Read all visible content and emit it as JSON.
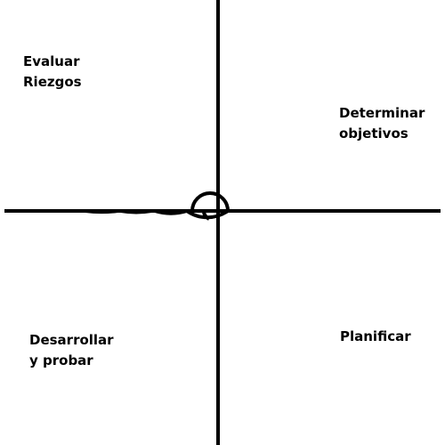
{
  "diagram": {
    "colors": {
      "background": "#ffffff",
      "stroke": "#000000"
    },
    "quadrants": {
      "top_left": {
        "lines": [
          "Evaluar",
          "Riezgos"
        ]
      },
      "top_right": {
        "lines": [
          "Determinar",
          "objetivos"
        ]
      },
      "bottom_left": {
        "lines": [
          "Desarrollar",
          "y probar"
        ]
      },
      "bottom_right": {
        "lines": [
          "Planificar"
        ]
      }
    }
  }
}
